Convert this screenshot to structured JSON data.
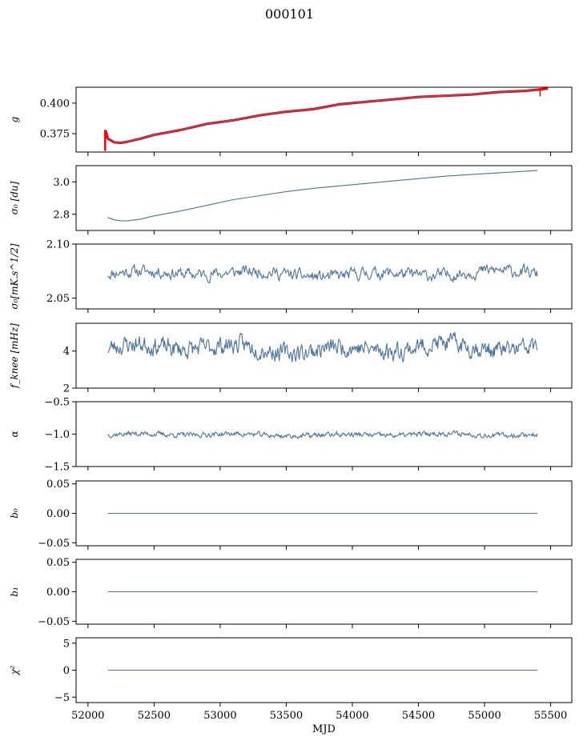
{
  "figure": {
    "title": "000101",
    "xlabel": "MJD",
    "xticks": [
      52000,
      52500,
      53000,
      53500,
      54000,
      54500,
      55000,
      55500
    ],
    "xlim": [
      51910,
      55660
    ]
  },
  "colors": {
    "model": "#4c72a0",
    "data": "#ff0000",
    "axis": "#000000"
  },
  "chart_data": [
    {
      "type": "line",
      "ylabel": "g",
      "ylim": [
        0.36,
        0.413
      ],
      "yticks": [
        0.375,
        0.4
      ],
      "ytick_labels": [
        "0.375",
        "0.400"
      ],
      "series": [
        {
          "kind": "data",
          "x": [
            52130,
            52140,
            52150,
            52200,
            52250,
            52300,
            52400,
            52500,
            52700,
            52900,
            53100,
            53300,
            53500,
            53700,
            53900,
            54100,
            54300,
            54500,
            54700,
            54900,
            55100,
            55300,
            55400,
            55480
          ],
          "y": [
            0.378,
            0.375,
            0.371,
            0.368,
            0.3675,
            0.3685,
            0.371,
            0.374,
            0.378,
            0.383,
            0.386,
            0.39,
            0.393,
            0.395,
            0.399,
            0.401,
            0.403,
            0.405,
            0.406,
            0.407,
            0.409,
            0.41,
            0.411,
            0.412
          ]
        },
        {
          "kind": "model",
          "x": [
            52150,
            52200,
            52250,
            52300,
            52400,
            52500,
            52700,
            52900,
            53100,
            53300,
            53500,
            53700,
            53900,
            54100,
            54300,
            54500,
            54700,
            54900,
            55100,
            55300,
            55400
          ],
          "y": [
            0.3715,
            0.3685,
            0.3677,
            0.3687,
            0.371,
            0.374,
            0.378,
            0.383,
            0.386,
            0.39,
            0.393,
            0.395,
            0.399,
            0.401,
            0.403,
            0.405,
            0.406,
            0.407,
            0.409,
            0.41,
            0.411
          ]
        }
      ]
    },
    {
      "type": "line",
      "ylabel": "σ₀ [du]",
      "ylim": [
        2.7,
        3.1
      ],
      "yticks": [
        2.8,
        3.0
      ],
      "ytick_labels": [
        "2.8",
        "3.0"
      ],
      "series": [
        {
          "kind": "model",
          "x": [
            52150,
            52200,
            52250,
            52300,
            52400,
            52500,
            52700,
            52900,
            53100,
            53300,
            53500,
            53700,
            53900,
            54100,
            54300,
            54500,
            54700,
            54900,
            55100,
            55300,
            55400
          ],
          "y": [
            2.78,
            2.765,
            2.76,
            2.76,
            2.77,
            2.79,
            2.82,
            2.855,
            2.89,
            2.915,
            2.94,
            2.96,
            2.975,
            2.99,
            3.005,
            3.02,
            3.035,
            3.045,
            3.055,
            3.065,
            3.07
          ]
        }
      ]
    },
    {
      "type": "line",
      "ylabel": "σ₀[mK.s^1/2]",
      "ylim": [
        2.04,
        2.1
      ],
      "yticks": [
        2.05,
        2.1
      ],
      "ytick_labels": [
        "2.05",
        "2.10"
      ],
      "noise": {
        "x_start": 52150,
        "x_end": 55400,
        "points": 520,
        "mean": 2.0725,
        "amplitude": 0.005,
        "seed": 11
      }
    },
    {
      "type": "line",
      "ylabel": "f_knee [mHz]",
      "ylim": [
        2.0,
        5.5
      ],
      "yticks": [
        2,
        4
      ],
      "ytick_labels": [
        "2",
        "4"
      ],
      "noise": {
        "x_start": 52150,
        "x_end": 55400,
        "points": 600,
        "mean": 4.15,
        "amplitude": 0.45,
        "seed": 23
      }
    },
    {
      "type": "line",
      "ylabel": "α",
      "ylim": [
        -1.5,
        -0.5
      ],
      "yticks": [
        -1.5,
        -1.0,
        -0.5
      ],
      "ytick_labels": [
        "−1.5",
        "−1.0",
        "−0.5"
      ],
      "noise": {
        "x_start": 52150,
        "x_end": 55400,
        "points": 600,
        "mean": -1.01,
        "amplitude": 0.035,
        "seed": 37
      }
    },
    {
      "type": "line",
      "ylabel": "b₀",
      "ylim": [
        -0.055,
        0.055
      ],
      "yticks": [
        -0.05,
        0.0,
        0.05
      ],
      "ytick_labels": [
        "−0.05",
        "0.00",
        "0.05"
      ],
      "series": [
        {
          "kind": "model",
          "x": [
            52150,
            55400
          ],
          "y": [
            0,
            0
          ]
        }
      ]
    },
    {
      "type": "line",
      "ylabel": "b₁",
      "ylim": [
        -0.055,
        0.055
      ],
      "yticks": [
        -0.05,
        0.0,
        0.05
      ],
      "ytick_labels": [
        "−0.05",
        "0.00",
        "0.05"
      ],
      "series": [
        {
          "kind": "model",
          "x": [
            52150,
            55400
          ],
          "y": [
            0,
            0
          ]
        }
      ]
    },
    {
      "type": "line",
      "ylabel": "χ²",
      "ylim": [
        -6,
        6
      ],
      "yticks": [
        -5,
        0,
        5
      ],
      "ytick_labels": [
        "−5",
        "0",
        "5"
      ],
      "series": [
        {
          "kind": "model",
          "x": [
            52150,
            55400
          ],
          "y": [
            0,
            0
          ]
        }
      ]
    }
  ]
}
